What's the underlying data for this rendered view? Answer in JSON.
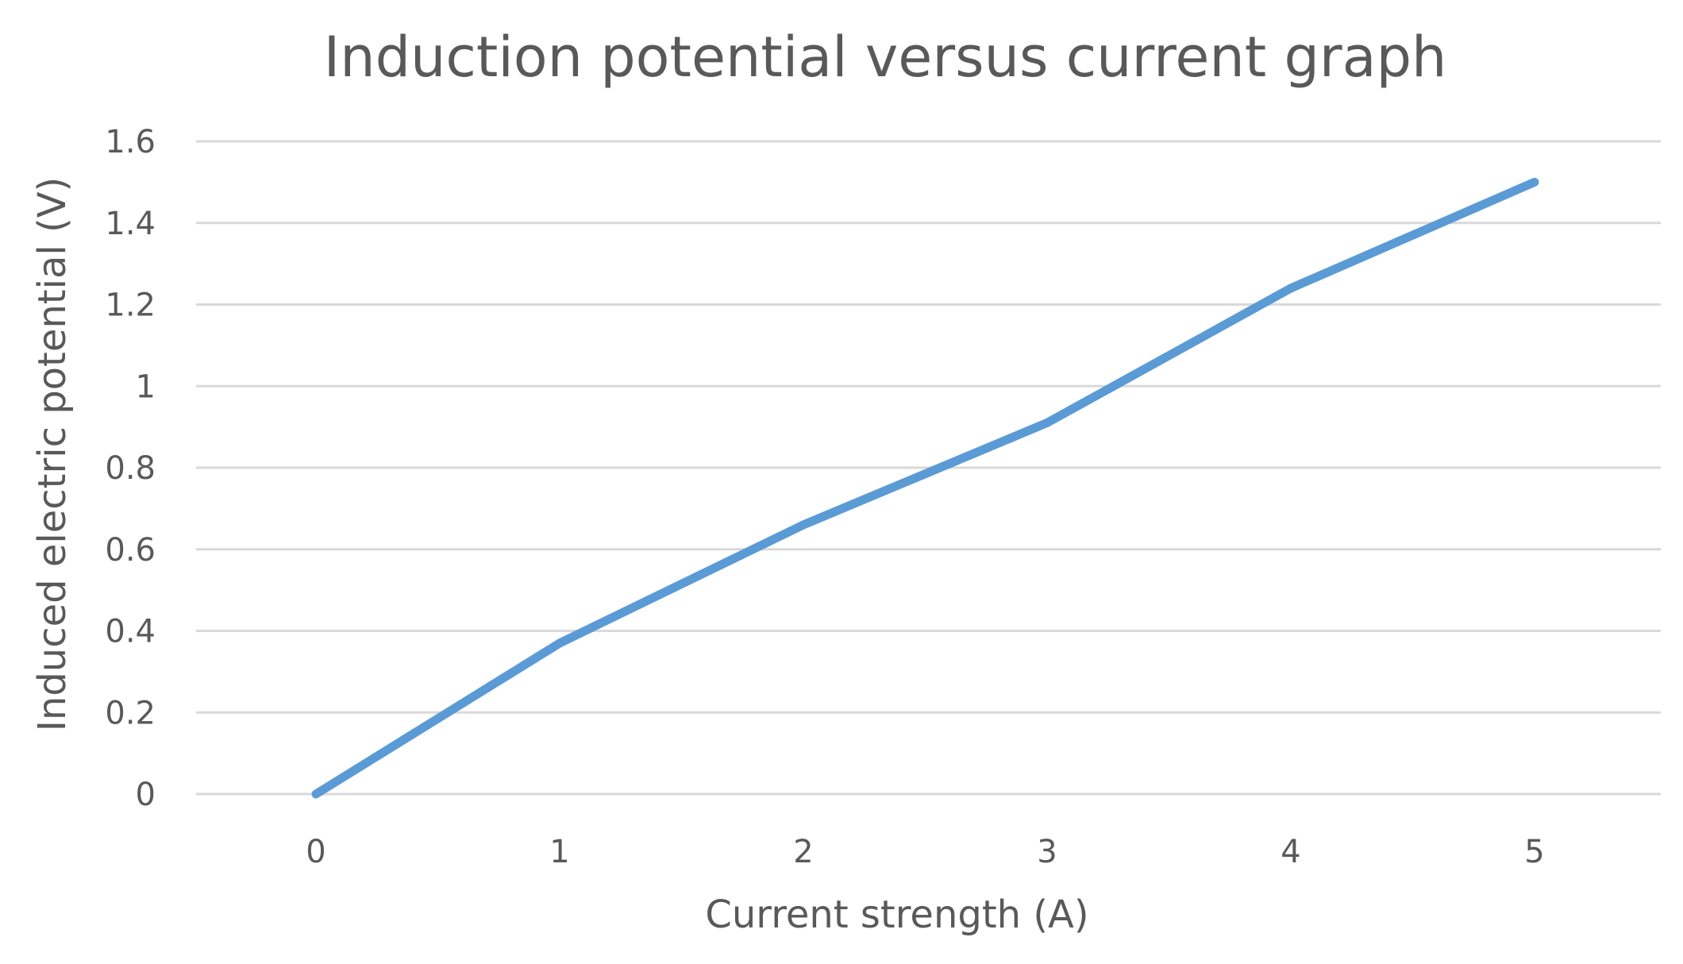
{
  "chart_data": {
    "type": "line",
    "title": "Induction potential versus current graph",
    "xlabel": "Current strength (A)",
    "ylabel": "Induced electric potential (V)",
    "categories": [
      "0",
      "1",
      "2",
      "3",
      "4",
      "5"
    ],
    "y_ticks": [
      "0",
      "0.2",
      "0.4",
      "0.6",
      "0.8",
      "1",
      "1.2",
      "1.4",
      "1.6"
    ],
    "ylim": [
      0,
      1.6
    ],
    "grid": true,
    "legend": "none",
    "series": [
      {
        "values": [
          0,
          0.37,
          0.66,
          0.91,
          1.24,
          1.5
        ],
        "color": "#5B9BD5"
      }
    ]
  }
}
